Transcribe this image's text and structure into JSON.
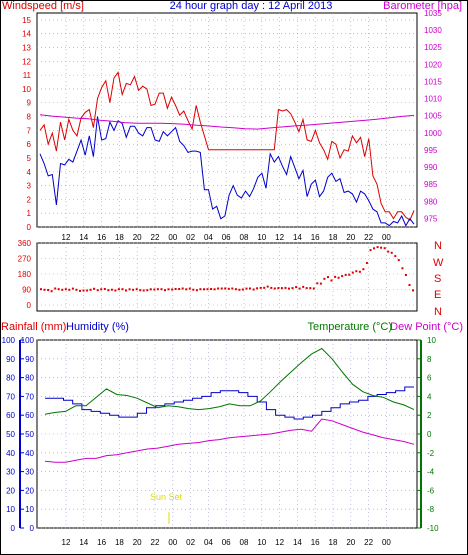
{
  "header": {
    "left": "Windspeed [m/s]",
    "center": "24 hour graph day : 12 April 2013",
    "right": "Barometer [hpa]"
  },
  "x_ticks": [
    "12",
    "14",
    "16",
    "18",
    "20",
    "22",
    "00",
    "02",
    "04",
    "06",
    "08",
    "10",
    "12",
    "14",
    "16",
    "18",
    "20",
    "22",
    "00"
  ],
  "colors": {
    "wind_avg": "#0000cc",
    "wind_gust": "#dd0000",
    "barometer": "#cc00cc",
    "direction": "#dd0000",
    "rain_axis": "#0000cc",
    "humidity": "#0000cc",
    "temperature": "#007700",
    "dewpoint": "#cc00cc",
    "sunset": "#dddd00",
    "grid": "#9999cc"
  },
  "chart_data": [
    {
      "type": "line",
      "name": "wind-barometer",
      "left_axis": {
        "label": "Windspeed [m/s]",
        "ticks": [
          "0",
          "1",
          "2",
          "3",
          "4",
          "5",
          "6",
          "7",
          "8",
          "9",
          "10",
          "11",
          "12",
          "13",
          "14",
          "15"
        ],
        "ylim": [
          0,
          15.5
        ]
      },
      "right_axis": {
        "label": "Barometer [hpa]",
        "ticks": [
          "975",
          "980",
          "985",
          "990",
          "995",
          "1000",
          "1005",
          "1010",
          "1015",
          "1020",
          "1025",
          "1030",
          "1035"
        ],
        "ylim": [
          972.5,
          1035
        ]
      },
      "series": [
        {
          "key": "gust",
          "values": [
            7,
            7.4,
            6,
            6.8,
            5.5,
            7.6,
            6.3,
            7.8,
            7,
            6.6,
            7.9,
            8.3,
            8.5,
            7.2,
            9.3,
            10.1,
            10.6,
            9,
            10.8,
            11.2,
            9.6,
            10.4,
            10.3,
            10.9,
            9.9,
            10.2,
            10,
            8.8,
            8.9,
            9.7,
            9.7,
            8.6,
            9.4,
            8.8,
            8.1,
            8.4,
            7.7,
            7.1,
            8.8,
            7.6,
            6.6,
            5.6,
            5.6,
            5.6,
            5.6,
            5.6,
            5.6,
            5.6,
            5.6,
            5.6,
            5.6,
            5.6,
            5.6,
            5.6,
            5.6,
            5.6,
            5.6,
            5.6,
            8.5,
            8.4,
            8.5,
            8.2,
            7.6,
            6.9,
            7.8,
            6.3,
            6.2,
            7,
            6.1,
            5.6,
            4.9,
            6.2,
            6,
            5,
            5.6,
            5.5,
            6.6,
            6.1,
            6.5,
            5.1,
            6.4,
            3.7,
            3.1,
            1.7,
            1.1,
            1.1,
            0.6,
            1.1,
            1.1,
            0.7,
            0.5,
            1.2
          ]
        },
        {
          "key": "avg",
          "values": [
            5.3,
            4.6,
            3.7,
            3.8,
            1.6,
            4.6,
            4.5,
            4.9,
            4.7,
            5.5,
            6.3,
            5.2,
            6.6,
            5.1,
            8,
            6.3,
            6.4,
            7.6,
            7,
            7.7,
            7.5,
            6.5,
            7.3,
            7.3,
            6.8,
            6.6,
            7.2,
            7.2,
            6.3,
            6.2,
            6.9,
            6.6,
            6.9,
            7.2,
            6.2,
            5.9,
            5.4,
            5.5,
            5.5,
            5.4,
            2.7,
            2.7,
            1.3,
            1.5,
            0.6,
            0.8,
            2.3,
            3,
            2.3,
            2.1,
            2.6,
            2.2,
            2.8,
            3.6,
            3.9,
            2.8,
            5.3,
            4.7,
            5.1,
            4.4,
            3.8,
            5.1,
            4.3,
            3.5,
            4.1,
            2.2,
            3.1,
            3.4,
            2.2,
            2.6,
            3.6,
            3.9,
            3.3,
            3.5,
            2.5,
            2.6,
            2.4,
            1.8,
            2.6,
            2.4,
            1.9,
            1.3,
            1.1,
            0.3,
            0.3,
            0.1,
            0.4,
            0.3,
            0.8,
            0.1,
            0.6,
            0.2
          ]
        },
        {
          "key": "barometer",
          "values": [
            1005.3,
            1004.9,
            1004.6,
            1004.3,
            1004.1,
            1003.7,
            1003.4,
            1003.0,
            1002.8,
            1002.8,
            1002.8,
            1002.7,
            1002.5,
            1002.2,
            1002.0,
            1001.7,
            1001.5,
            1001.2,
            1001.1,
            1001.4,
            1001.7,
            1002.0,
            1002.2,
            1002.5,
            1002.8,
            1003.1,
            1003.4,
            1003.7,
            1004.0,
            1004.4,
            1004.8,
            1005.1
          ]
        }
      ]
    },
    {
      "type": "scatter",
      "name": "wind-direction",
      "axis": {
        "ticks": [
          "360",
          "270",
          "180",
          "90",
          "0"
        ],
        "ylim": [
          0,
          360
        ]
      },
      "right_labels": [
        "N",
        "W",
        "S",
        "E",
        "N"
      ],
      "values": [
        92,
        88,
        87,
        80,
        96,
        92,
        88,
        92,
        88,
        95,
        88,
        82,
        84,
        84,
        88,
        94,
        86,
        91,
        93,
        86,
        89,
        84,
        92,
        92,
        84,
        91,
        88,
        92,
        86,
        84,
        86,
        91,
        90,
        92,
        92,
        86,
        91,
        90,
        93,
        93,
        96,
        91,
        95,
        89,
        86,
        92,
        91,
        92,
        93,
        91,
        96,
        96,
        96,
        94,
        96,
        92,
        88,
        90,
        95,
        96,
        90,
        97,
        99,
        100,
        107,
        99,
        96,
        98,
        98,
        99,
        95,
        98,
        104,
        95,
        105,
        98,
        98,
        96,
        126,
        124,
        152,
        162,
        142,
        163,
        158,
        168,
        175,
        176,
        188,
        196,
        193,
        208,
        244,
        319,
        329,
        336,
        333,
        330,
        310,
        303,
        284,
        261,
        213,
        174,
        116,
        85
      ]
    },
    {
      "type": "line",
      "name": "rain-humidity-temperature",
      "left_axes": [
        {
          "label": "Rainfall (mm)",
          "ticks": [
            "0",
            "10",
            "20",
            "30",
            "40",
            "50",
            "60",
            "70",
            "80",
            "90",
            "100"
          ],
          "ylim": [
            0,
            100
          ]
        },
        {
          "label": "Humidity (%)",
          "ticks": [
            "0",
            "10",
            "20",
            "30",
            "40",
            "50",
            "60",
            "70",
            "80",
            "90",
            "100"
          ],
          "ylim": [
            0,
            100
          ]
        }
      ],
      "right_axis": {
        "label": "Temperature (°C)",
        "ticks": [
          "-10",
          "-8",
          "-6",
          "-4",
          "-2",
          "0",
          "2",
          "4",
          "6",
          "8",
          "10"
        ],
        "ylim": [
          -10,
          10
        ]
      },
      "dewpoint_label": "Dew Point (°C)",
      "annotation": "Sun Set",
      "series": [
        {
          "key": "humidity",
          "values": [
            69,
            69,
            68,
            66,
            63,
            62,
            61,
            60,
            59,
            59,
            61,
            64,
            65,
            66,
            67,
            68,
            69,
            70,
            72,
            73,
            73,
            72,
            70,
            67,
            63,
            60,
            59,
            58,
            59,
            60,
            62,
            64,
            66,
            67,
            68,
            70,
            71,
            72,
            73,
            75,
            75
          ]
        },
        {
          "key": "temperature",
          "values": [
            2.1,
            2.3,
            2.4,
            3.0,
            3.0,
            3.9,
            4.8,
            4.2,
            4.1,
            3.8,
            3.3,
            2.8,
            3.0,
            2.9,
            2.7,
            2.6,
            2.7,
            2.9,
            3.2,
            3.0,
            3.0,
            3.5,
            4.5,
            5.6,
            6.6,
            7.6,
            8.5,
            9.1,
            8.0,
            6.6,
            5.3,
            4.5,
            4.1,
            3.9,
            3.4,
            3.1,
            2.6
          ]
        },
        {
          "key": "dewpoint",
          "values": [
            -2.9,
            -3.0,
            -3.0,
            -2.8,
            -2.6,
            -2.6,
            -2.3,
            -2.2,
            -2.0,
            -1.8,
            -1.6,
            -1.5,
            -1.3,
            -1.1,
            -1.0,
            -0.9,
            -0.7,
            -0.6,
            -0.4,
            -0.3,
            -0.2,
            -0.1,
            0.0,
            0.2,
            0.4,
            0.5,
            0.3,
            1.6,
            1.4,
            1.0,
            0.6,
            0.2,
            -0.1,
            -0.4,
            -0.6,
            -0.8,
            -1.1
          ]
        }
      ]
    }
  ]
}
